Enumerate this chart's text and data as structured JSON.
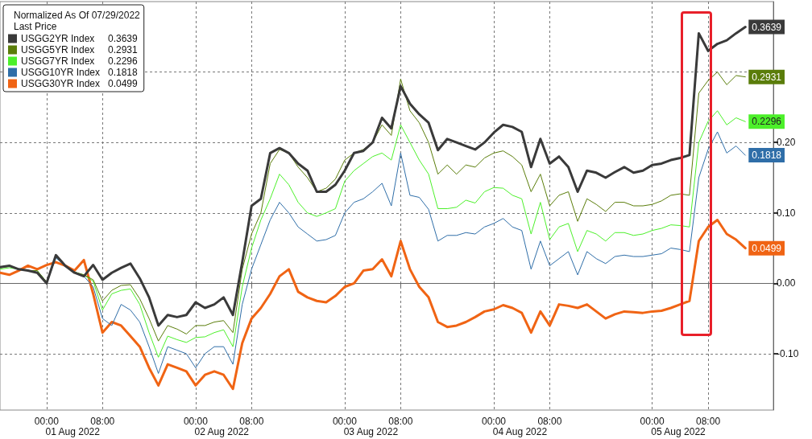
{
  "chart_data": {
    "type": "line",
    "legend_title": "Normalized As Of 07/29/2022",
    "subtitle": "Last Price",
    "categories": [
      null,
      null,
      null,
      null,
      null,
      "00:00",
      null,
      null,
      null,
      null,
      null,
      "08:00",
      null,
      null,
      null,
      null,
      null,
      null,
      null,
      null,
      null,
      "00:00",
      null,
      null,
      null,
      null,
      null,
      "08:00",
      null,
      null,
      null,
      null,
      null,
      null,
      null,
      null,
      null,
      "00:00",
      null,
      null,
      null,
      null,
      null,
      "08:00",
      null,
      null,
      null,
      null,
      null,
      null,
      null,
      null,
      null,
      "00:00",
      null,
      null,
      null,
      null,
      null,
      "08:00",
      null,
      null,
      null,
      null,
      null,
      null,
      null,
      null,
      null,
      null,
      "00:00",
      null,
      null,
      null,
      null,
      null,
      "08:00",
      null,
      null,
      null,
      null,
      null,
      null,
      null
    ],
    "annotations": [
      "01 Aug 2022",
      "02 Aug 2022",
      "03 Aug 2022",
      "04 Aug 2022",
      "05 Aug 2022"
    ],
    "series": [
      {
        "name": "USGG2YR Index",
        "color": "#3a3a3a",
        "values": [
          0.023,
          0.025,
          0.02,
          0.018,
          0.015,
          0.0,
          0.04,
          0.025,
          0.015,
          0.01,
          0.026,
          0.005,
          0.015,
          0.022,
          0.028,
          0.007,
          -0.02,
          -0.06,
          -0.045,
          -0.048,
          -0.045,
          -0.027,
          -0.035,
          -0.03,
          -0.02,
          -0.045,
          0.03,
          0.11,
          0.12,
          0.185,
          0.192,
          0.185,
          0.17,
          0.16,
          0.13,
          0.13,
          0.14,
          0.16,
          0.185,
          0.188,
          0.2,
          0.235,
          0.22,
          0.28,
          0.255,
          0.24,
          0.228,
          0.189,
          0.205,
          0.2,
          0.195,
          0.19,
          0.2,
          0.214,
          0.225,
          0.222,
          0.215,
          0.165,
          0.205,
          0.17,
          0.18,
          0.165,
          0.13,
          0.16,
          0.157,
          0.15,
          0.158,
          0.165,
          0.157,
          0.16,
          0.168,
          0.17,
          0.175,
          0.178,
          0.182,
          0.355,
          0.33,
          0.34,
          0.345,
          0.355,
          0.3639,
          null,
          null,
          null
        ],
        "value_labels": [
          null,
          null,
          null,
          null,
          null,
          null,
          null,
          null,
          null,
          null,
          null,
          null,
          null,
          null,
          null,
          null,
          null,
          null,
          null,
          null,
          null,
          null,
          null,
          null,
          null,
          null,
          null,
          null,
          null,
          null,
          null,
          null,
          null,
          null,
          null,
          null,
          null,
          null,
          null,
          null,
          null,
          null,
          null,
          null,
          null,
          null,
          null,
          null,
          null,
          null,
          null,
          null,
          null,
          null,
          null,
          null,
          null,
          null,
          null,
          null,
          null,
          null,
          null,
          null,
          null,
          null,
          null,
          null,
          null,
          null,
          null,
          null,
          null,
          null,
          null,
          null,
          null,
          null,
          null,
          null,
          "0.3639",
          null,
          null,
          null
        ]
      },
      {
        "name": "USGG5YR Index",
        "color": "#5a7d0a",
        "values": [
          0.022,
          0.024,
          0.02,
          0.018,
          0.018,
          0.002,
          0.038,
          0.025,
          0.016,
          0.012,
          0.005,
          -0.025,
          -0.01,
          -0.003,
          -0.002,
          -0.022,
          -0.05,
          -0.082,
          -0.06,
          -0.065,
          -0.072,
          -0.06,
          -0.06,
          -0.055,
          -0.053,
          -0.07,
          0.02,
          0.07,
          0.1,
          0.17,
          0.19,
          0.185,
          0.165,
          0.15,
          0.13,
          0.135,
          0.148,
          0.175,
          0.185,
          0.19,
          0.2,
          0.225,
          0.21,
          0.29,
          0.245,
          0.228,
          0.2,
          0.155,
          0.168,
          0.155,
          0.168,
          0.165,
          0.178,
          0.185,
          0.188,
          0.18,
          0.168,
          0.13,
          0.155,
          0.11,
          0.125,
          0.13,
          0.088,
          0.12,
          0.112,
          0.102,
          0.115,
          0.115,
          0.11,
          0.11,
          0.112,
          0.117,
          0.125,
          0.127,
          0.125,
          0.27,
          0.288,
          0.3,
          0.282,
          0.295,
          0.2931,
          null,
          null,
          null
        ],
        "value_labels": [
          null,
          null,
          null,
          null,
          null,
          null,
          null,
          null,
          null,
          null,
          null,
          null,
          null,
          null,
          null,
          null,
          null,
          null,
          null,
          null,
          null,
          null,
          null,
          null,
          null,
          null,
          null,
          null,
          null,
          null,
          null,
          null,
          null,
          null,
          null,
          null,
          null,
          null,
          null,
          null,
          null,
          null,
          null,
          null,
          null,
          null,
          null,
          null,
          null,
          null,
          null,
          null,
          null,
          null,
          null,
          null,
          null,
          null,
          null,
          null,
          null,
          null,
          null,
          null,
          null,
          null,
          null,
          null,
          null,
          null,
          null,
          null,
          null,
          null,
          null,
          null,
          null,
          null,
          null,
          null,
          "0.2931",
          null,
          null,
          null
        ]
      },
      {
        "name": "USGG7YR Index",
        "color": "#4cf02a",
        "values": [
          0.02,
          0.022,
          0.02,
          0.018,
          0.018,
          0.002,
          0.038,
          0.025,
          0.016,
          0.012,
          0.003,
          -0.038,
          -0.015,
          -0.01,
          -0.008,
          -0.03,
          -0.07,
          -0.105,
          -0.075,
          -0.08,
          -0.084,
          -0.077,
          -0.076,
          -0.07,
          -0.066,
          -0.09,
          -0.005,
          0.05,
          0.09,
          0.12,
          0.155,
          0.14,
          0.115,
          0.1,
          0.095,
          0.1,
          0.106,
          0.145,
          0.16,
          0.17,
          0.18,
          0.185,
          0.175,
          0.225,
          0.2,
          0.175,
          0.155,
          0.106,
          0.106,
          0.108,
          0.118,
          0.114,
          0.13,
          0.136,
          0.135,
          0.125,
          0.12,
          0.07,
          0.115,
          0.062,
          0.08,
          0.085,
          0.045,
          0.075,
          0.07,
          0.06,
          0.072,
          0.072,
          0.068,
          0.07,
          0.075,
          0.078,
          0.083,
          0.082,
          0.08,
          0.2,
          0.23,
          0.245,
          0.225,
          0.235,
          0.2296,
          null,
          null,
          null
        ],
        "value_labels": [
          null,
          null,
          null,
          null,
          null,
          null,
          null,
          null,
          null,
          null,
          null,
          null,
          null,
          null,
          null,
          null,
          null,
          null,
          null,
          null,
          null,
          null,
          null,
          null,
          null,
          null,
          null,
          null,
          null,
          null,
          null,
          null,
          null,
          null,
          null,
          null,
          null,
          null,
          null,
          null,
          null,
          null,
          null,
          null,
          null,
          null,
          null,
          null,
          null,
          null,
          null,
          null,
          null,
          null,
          null,
          null,
          null,
          null,
          null,
          null,
          null,
          null,
          null,
          null,
          null,
          null,
          null,
          null,
          null,
          null,
          null,
          null,
          null,
          null,
          null,
          null,
          null,
          null,
          null,
          null,
          "0.2296",
          null,
          null,
          null
        ]
      },
      {
        "name": "USGG10YR Index",
        "color": "#2f6ea8",
        "values": [
          null,
          null,
          null,
          null,
          null,
          0.0,
          0.036,
          0.025,
          0.016,
          0.01,
          -0.005,
          -0.05,
          -0.06,
          -0.03,
          -0.038,
          -0.055,
          -0.09,
          -0.128,
          -0.09,
          -0.095,
          -0.1,
          -0.12,
          -0.1,
          -0.09,
          -0.09,
          -0.115,
          -0.03,
          0.02,
          0.055,
          0.09,
          0.115,
          0.1,
          0.08,
          0.07,
          0.06,
          0.062,
          0.068,
          0.1,
          0.115,
          0.12,
          0.13,
          0.142,
          0.11,
          0.185,
          0.125,
          0.122,
          0.105,
          0.06,
          0.068,
          0.068,
          0.072,
          0.07,
          0.08,
          0.085,
          0.092,
          0.08,
          0.075,
          0.02,
          0.06,
          0.025,
          0.035,
          0.045,
          0.012,
          0.045,
          0.035,
          0.028,
          0.038,
          0.04,
          0.038,
          0.038,
          0.04,
          0.042,
          0.05,
          0.048,
          0.045,
          0.15,
          0.19,
          0.215,
          0.185,
          0.195,
          0.1818,
          null,
          null,
          null
        ],
        "value_labels": [
          null,
          null,
          null,
          null,
          null,
          null,
          null,
          null,
          null,
          null,
          null,
          null,
          null,
          null,
          null,
          null,
          null,
          null,
          null,
          null,
          null,
          null,
          null,
          null,
          null,
          null,
          null,
          null,
          null,
          null,
          null,
          null,
          null,
          null,
          null,
          null,
          null,
          null,
          null,
          null,
          null,
          null,
          null,
          null,
          null,
          null,
          null,
          null,
          null,
          null,
          null,
          null,
          null,
          null,
          null,
          null,
          null,
          null,
          null,
          null,
          null,
          null,
          null,
          null,
          null,
          null,
          null,
          null,
          null,
          null,
          null,
          null,
          null,
          null,
          null,
          null,
          null,
          null,
          null,
          null,
          "0.1818",
          null,
          null,
          null
        ]
      },
      {
        "name": "USGG30YR Index",
        "color": "#f06414",
        "values": [
          0.015,
          0.012,
          0.018,
          0.025,
          0.02,
          0.026,
          0.03,
          0.025,
          0.018,
          0.033,
          -0.015,
          -0.07,
          -0.055,
          -0.06,
          -0.075,
          -0.09,
          -0.12,
          -0.145,
          -0.115,
          -0.12,
          -0.125,
          -0.145,
          -0.13,
          -0.125,
          -0.13,
          -0.15,
          -0.085,
          -0.05,
          -0.035,
          -0.015,
          0.01,
          0.02,
          -0.012,
          -0.02,
          -0.025,
          -0.027,
          -0.018,
          -0.005,
          0.0,
          0.018,
          0.02,
          0.034,
          0.01,
          0.06,
          0.02,
          -0.005,
          -0.02,
          -0.055,
          -0.062,
          -0.06,
          -0.055,
          -0.048,
          -0.04,
          -0.037,
          -0.031,
          -0.035,
          -0.042,
          -0.07,
          -0.04,
          -0.06,
          -0.03,
          -0.032,
          -0.035,
          -0.03,
          -0.04,
          -0.05,
          -0.044,
          -0.04,
          -0.041,
          -0.042,
          -0.04,
          -0.039,
          -0.035,
          -0.03,
          -0.025,
          0.06,
          0.08,
          0.09,
          0.07,
          0.062,
          0.0499,
          null,
          null,
          null
        ],
        "value_labels": [
          null,
          null,
          null,
          null,
          null,
          null,
          null,
          null,
          null,
          null,
          null,
          null,
          null,
          null,
          null,
          null,
          null,
          null,
          null,
          null,
          null,
          null,
          null,
          null,
          null,
          null,
          null,
          null,
          null,
          null,
          null,
          null,
          null,
          null,
          null,
          null,
          null,
          null,
          null,
          null,
          null,
          null,
          null,
          null,
          null,
          null,
          null,
          null,
          null,
          null,
          null,
          null,
          null,
          null,
          null,
          null,
          null,
          null,
          null,
          null,
          null,
          null,
          null,
          null,
          null,
          null,
          null,
          null,
          null,
          null,
          null,
          null,
          null,
          null,
          null,
          null,
          null,
          null,
          null,
          null,
          "0.0499",
          null,
          null,
          null
        ]
      }
    ],
    "ylim": [
      -0.18,
      0.4
    ],
    "yticks": [
      {
        "value": -0.1,
        "label": "-0.10"
      },
      {
        "value": 0,
        "label": "0.00"
      },
      {
        "value": 0.1,
        "label": "0.10"
      },
      {
        "value": 0.2,
        "label": "0.20"
      },
      {
        "value": 0.3,
        "label": null
      }
    ],
    "grid": true,
    "legend": "top left",
    "marker": "none",
    "line_style": "solid"
  }
}
